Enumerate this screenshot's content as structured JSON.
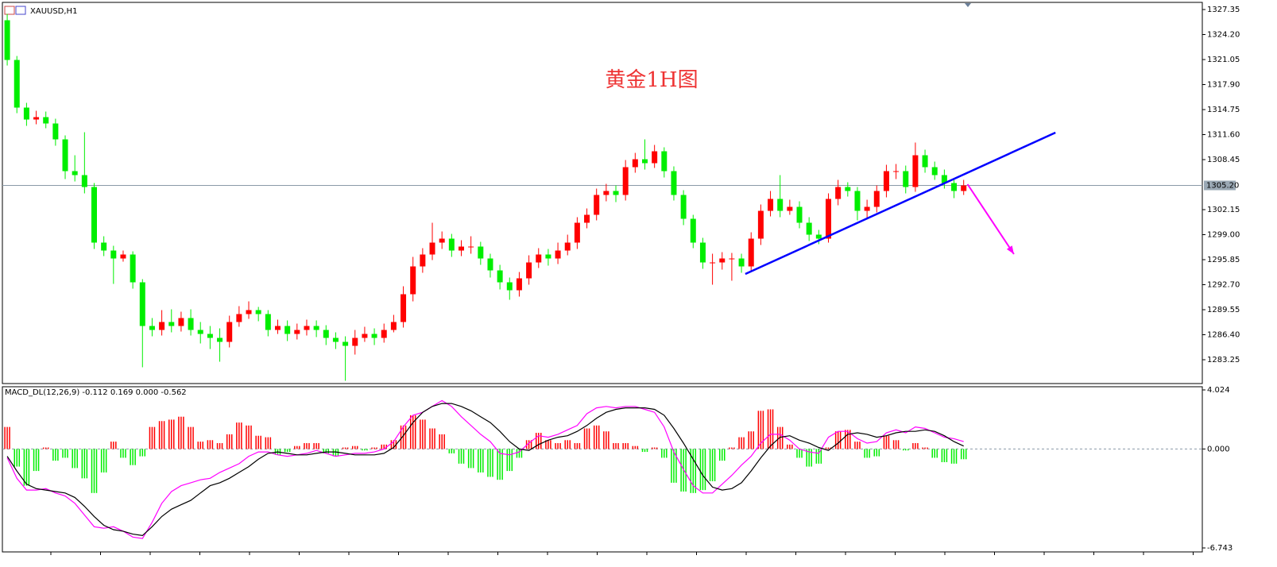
{
  "chart_data": [
    {
      "type": "candlestick",
      "title": "XAUUSD,H1",
      "annotation": "黄金1H图",
      "up_color": "#ff0000",
      "down_color": "#00ee00",
      "xlim": [
        0,
        124.2
      ],
      "ylim": [
        1280.25,
        1328.25
      ],
      "yticks": [
        1327.35,
        {
          "value": 1324.2,
          "label": "1324.20"
        },
        1321.05,
        {
          "value": 1317.9,
          "label": "1317.90"
        },
        1314.75,
        {
          "value": 1311.6,
          "label": "1311.60"
        },
        1308.45,
        1302.15,
        {
          "value": 1299.0,
          "label": "1299.00"
        },
        1295.85,
        {
          "value": 1292.7,
          "label": "1292.70"
        },
        1289.55,
        {
          "value": 1286.4,
          "label": "1286.40"
        },
        1283.25
      ],
      "current_price": {
        "value": 1305.2,
        "label": "1305.20"
      },
      "trend_line": {
        "x": [
          76.9,
          109.0
        ],
        "y": [
          1294.05,
          1311.85
        ],
        "color": "#0000ff"
      },
      "arrow": {
        "x": [
          99.9,
          104.7
        ],
        "y": [
          1305.35,
          1296.55
        ],
        "color": "#ff00ff"
      },
      "open": [
        1326,
        1321,
        1315,
        1313.5,
        1313.8,
        1313,
        1311,
        1307,
        1306.5,
        1305,
        1298,
        1297,
        1296,
        1296.5,
        1293,
        1287.5,
        1287,
        1288,
        1287.5,
        1288.5,
        1287,
        1286.5,
        1286,
        1285.5,
        1288,
        1289,
        1289.5,
        1289,
        1287,
        1287.5,
        1286.5,
        1287,
        1287.5,
        1287,
        1286,
        1285.5,
        1285,
        1286,
        1286.5,
        1286,
        1287,
        1288,
        1291.5,
        1295,
        1296.5,
        1298,
        1298.5,
        1297,
        1297.5,
        1297.5,
        1296,
        1294.5,
        1293,
        1292,
        1293.5,
        1295.5,
        1296.5,
        1296,
        1297,
        1298,
        1300.5,
        1301.5,
        1304,
        1304.5,
        1304,
        1307.5,
        1308.5,
        1308,
        1309.5,
        1307,
        1304,
        1301,
        1298,
        1295.5,
        1295.5,
        1296,
        1296,
        1295,
        1298.5,
        1302,
        1303.5,
        1302,
        1302.5,
        1300.5,
        1299,
        1298.5,
        1303.5,
        1305,
        1304.5,
        1302,
        1302.5,
        1304.5,
        1307,
        1307,
        1305,
        1309,
        1307.5,
        1306.5,
        1305.5,
        1304.5
      ],
      "high": [
        1326.8,
        1321.5,
        1315.6,
        1314.6,
        1314.5,
        1313.6,
        1311.5,
        1309,
        1311.9,
        1305.5,
        1298.8,
        1297.6,
        1297,
        1296.9,
        1293.4,
        1288.5,
        1289.5,
        1289.6,
        1289.3,
        1289.6,
        1288,
        1287.5,
        1287.2,
        1288.8,
        1290,
        1290.6,
        1289.9,
        1289.5,
        1288.3,
        1288.2,
        1287.8,
        1288.3,
        1288.2,
        1287.6,
        1286.7,
        1286.2,
        1287,
        1287.4,
        1287.2,
        1287.8,
        1288.9,
        1292.5,
        1296.2,
        1297.3,
        1300.5,
        1299.4,
        1299.1,
        1298.3,
        1298.8,
        1298.1,
        1296.6,
        1295.2,
        1293.6,
        1294.3,
        1296.4,
        1297.3,
        1297.2,
        1298,
        1299,
        1301.2,
        1302.3,
        1304.8,
        1305.4,
        1305.2,
        1308.4,
        1309.3,
        1311,
        1310.3,
        1310,
        1307.6,
        1304.6,
        1301.5,
        1298.6,
        1296.6,
        1296.8,
        1296.7,
        1296.6,
        1299.3,
        1302.8,
        1304.5,
        1306.5,
        1303.4,
        1303.2,
        1301.2,
        1299.6,
        1304.2,
        1305.9,
        1305.6,
        1305,
        1303.4,
        1305.2,
        1307.8,
        1307.9,
        1307.7,
        1310.6,
        1309.7,
        1308.2,
        1307.2,
        1306,
        1305.9
      ],
      "low": [
        1320.3,
        1314.3,
        1312.7,
        1312.9,
        1312.4,
        1310.2,
        1306,
        1305.7,
        1304.2,
        1297.2,
        1296.3,
        1292.8,
        1295.6,
        1292.2,
        1282.3,
        1286.2,
        1286.3,
        1286.7,
        1286.8,
        1286.3,
        1285.3,
        1284.6,
        1283,
        1284.8,
        1287.4,
        1288.4,
        1288.1,
        1286.2,
        1286.5,
        1285.6,
        1285.8,
        1286.3,
        1286.1,
        1285.1,
        1284.6,
        1280.6,
        1283.9,
        1285.5,
        1285.1,
        1285.4,
        1286.7,
        1287.3,
        1290.6,
        1294.2,
        1295.8,
        1297.2,
        1296.2,
        1296.3,
        1296.6,
        1295.2,
        1293.6,
        1292.1,
        1290.8,
        1291.2,
        1292.7,
        1294.8,
        1295.1,
        1295.3,
        1296.4,
        1297.2,
        1299.8,
        1300.8,
        1303.2,
        1303.1,
        1303.3,
        1306.8,
        1307.2,
        1307.4,
        1306.2,
        1303.3,
        1300.2,
        1297.3,
        1294.7,
        1292.7,
        1294.6,
        1293.2,
        1294.2,
        1294.3,
        1297.7,
        1301.3,
        1301.2,
        1301.5,
        1299.8,
        1298.2,
        1297.8,
        1298,
        1302.7,
        1303.8,
        1300.8,
        1300.9,
        1301.8,
        1303.7,
        1306,
        1304.2,
        1304.4,
        1306.8,
        1305.9,
        1304.8,
        1303.6,
        1304
      ],
      "close": [
        1321,
        1315,
        1313.5,
        1313.8,
        1313,
        1311,
        1307,
        1306.5,
        1305,
        1298,
        1297,
        1296,
        1296.5,
        1293,
        1287.5,
        1287,
        1288,
        1287.5,
        1288.5,
        1287,
        1286.5,
        1286,
        1285.5,
        1288,
        1289,
        1289.5,
        1289,
        1287,
        1287.5,
        1286.5,
        1287,
        1287.5,
        1287,
        1286,
        1285.5,
        1285,
        1286,
        1286.5,
        1286,
        1287,
        1288,
        1291.5,
        1295,
        1296.5,
        1298,
        1298.5,
        1297,
        1297.5,
        1297.5,
        1296,
        1294.5,
        1293,
        1292,
        1293.5,
        1295.5,
        1296.5,
        1296,
        1297,
        1298,
        1300.5,
        1301.5,
        1304,
        1304.5,
        1304,
        1307.5,
        1308.5,
        1308,
        1309.5,
        1307,
        1304,
        1301,
        1298,
        1295.5,
        1295.5,
        1296,
        1296,
        1295,
        1298.5,
        1302,
        1303.5,
        1302,
        1302.5,
        1300.5,
        1299,
        1298.5,
        1303.5,
        1305,
        1304.5,
        1302,
        1302.5,
        1304.5,
        1307,
        1307,
        1305,
        1309,
        1307.5,
        1306.5,
        1305.5,
        1304.5,
        1305.2
      ]
    },
    {
      "type": "macd",
      "title": "MACD_DL(12,26,9) -0.112 0.169 0.000 -0.562",
      "xlim": [
        0,
        124.2
      ],
      "ylim": [
        -6.743,
        4.024
      ],
      "yticks": [
        4.024,
        {
          "value": 0,
          "label": "0.000"
        },
        -6.743
      ],
      "up_color": "#ff0000",
      "down_color": "#00ee00",
      "histogram": [
        1.5,
        -1.2,
        -2.5,
        -1.5,
        0.1,
        -0.8,
        -0.6,
        -1.3,
        -2.0,
        -3.0,
        -1.6,
        0.5,
        -0.6,
        -1.1,
        -0.5,
        1.5,
        1.9,
        2.0,
        2.2,
        1.5,
        0.5,
        0.6,
        0.4,
        1.0,
        1.8,
        1.6,
        0.9,
        0.8,
        -0.4,
        -0.2,
        0.2,
        0.4,
        0.4,
        -0.3,
        -0.5,
        0.1,
        0.2,
        -0.1,
        0.1,
        0.3,
        0.6,
        1.6,
        2.3,
        2.0,
        1.4,
        1.0,
        -0.3,
        -1.0,
        -1.3,
        -1.6,
        -1.9,
        -2.1,
        -1.5,
        -0.6,
        0.6,
        1.1,
        0.6,
        0.4,
        0.6,
        0.4,
        1.4,
        1.6,
        1.2,
        0.4,
        0.4,
        0.2,
        -0.2,
        0.1,
        -0.6,
        -2.3,
        -2.9,
        -3.0,
        -2.8,
        -2.2,
        -0.8,
        0.1,
        0.8,
        1.2,
        2.6,
        2.7,
        1.5,
        0.3,
        -0.6,
        -1.2,
        -1.0,
        0.1,
        1.2,
        1.3,
        0.5,
        -0.6,
        -0.5,
        0.9,
        0.6,
        -0.1,
        0.4,
        0.1,
        -0.6,
        -0.9,
        -1.0,
        -0.7
      ],
      "main": {
        "color": "#000000",
        "values": [
          -0.5,
          -1.5,
          -2.4,
          -2.7,
          -2.8,
          -2.9,
          -3.0,
          -3.3,
          -3.9,
          -4.6,
          -5.2,
          -5.5,
          -5.6,
          -5.8,
          -5.9,
          -5.3,
          -4.6,
          -4.1,
          -3.8,
          -3.5,
          -3.0,
          -2.5,
          -2.3,
          -2.0,
          -1.6,
          -1.2,
          -0.7,
          -0.3,
          -0.2,
          -0.3,
          -0.4,
          -0.4,
          -0.3,
          -0.2,
          -0.2,
          -0.3,
          -0.4,
          -0.4,
          -0.4,
          -0.3,
          0.1,
          0.9,
          1.8,
          2.5,
          2.9,
          3.1,
          3.1,
          2.9,
          2.6,
          2.2,
          1.8,
          1.2,
          0.5,
          0.0,
          -0.1,
          0.3,
          0.6,
          0.8,
          0.9,
          1.2,
          1.6,
          2.1,
          2.5,
          2.7,
          2.8,
          2.8,
          2.8,
          2.7,
          2.3,
          1.4,
          0.4,
          -0.7,
          -1.8,
          -2.6,
          -2.8,
          -2.7,
          -2.3,
          -1.5,
          -0.6,
          0.2,
          0.8,
          0.9,
          0.6,
          0.4,
          0.1,
          -0.1,
          0.4,
          1.0,
          1.1,
          1.0,
          0.8,
          0.9,
          1.1,
          1.2,
          1.2,
          1.3,
          1.2,
          0.9,
          0.5,
          0.2
        ]
      },
      "signal": {
        "color": "#ff00ff",
        "values": [
          -0.6,
          -2.0,
          -2.8,
          -2.8,
          -2.7,
          -3.0,
          -3.2,
          -3.7,
          -4.5,
          -5.3,
          -5.4,
          -5.3,
          -5.6,
          -6.0,
          -6.1,
          -5.0,
          -3.7,
          -2.9,
          -2.5,
          -2.3,
          -2.1,
          -2.0,
          -1.6,
          -1.3,
          -1.0,
          -0.5,
          -0.2,
          -0.2,
          -0.4,
          -0.5,
          -0.4,
          -0.3,
          -0.1,
          -0.3,
          -0.5,
          -0.4,
          -0.3,
          -0.3,
          -0.2,
          0.0,
          0.5,
          1.5,
          2.3,
          2.5,
          2.9,
          3.3,
          2.9,
          2.2,
          1.6,
          1.0,
          0.5,
          -0.3,
          -0.4,
          -0.2,
          0.4,
          0.9,
          0.8,
          1.0,
          1.3,
          1.6,
          2.4,
          2.8,
          2.9,
          2.8,
          2.9,
          2.9,
          2.7,
          2.5,
          1.5,
          -0.2,
          -1.4,
          -2.5,
          -3.0,
          -3.0,
          -2.4,
          -1.8,
          -1.1,
          -0.5,
          0.4,
          1.0,
          1.0,
          0.6,
          0.0,
          -0.2,
          -0.3,
          0.8,
          1.2,
          1.2,
          0.7,
          0.4,
          0.5,
          1.1,
          1.3,
          1.1,
          1.5,
          1.4,
          1.1,
          0.8,
          0.7,
          0.5
        ]
      }
    }
  ]
}
